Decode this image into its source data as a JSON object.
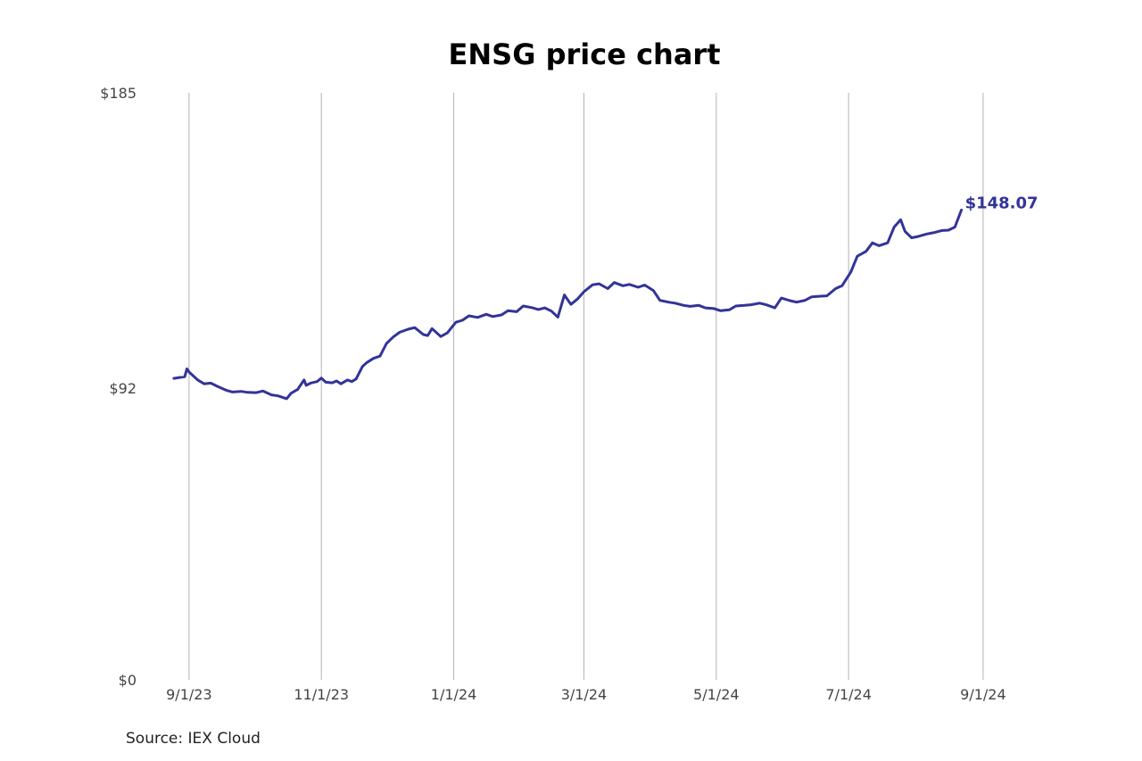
{
  "chart_data": {
    "type": "line",
    "title": "ENSG price chart",
    "xlabel": "",
    "ylabel": "",
    "source": "Source: IEX Cloud",
    "last_value_label": "$148.07",
    "line_color": "#333399",
    "grid": "vertical",
    "xlim": [
      "2023-08-23",
      "2024-09-29"
    ],
    "ylim": [
      0,
      185
    ],
    "y_ticks": [
      {
        "value": 0,
        "label": "$0"
      },
      {
        "value": 92,
        "label": "$92"
      },
      {
        "value": 185,
        "label": "$185"
      }
    ],
    "x_ticks": [
      {
        "date": "2023-09-01",
        "label": "9/1/23"
      },
      {
        "date": "2023-11-01",
        "label": "11/1/23"
      },
      {
        "date": "2024-01-01",
        "label": "1/1/24"
      },
      {
        "date": "2024-03-01",
        "label": "3/1/24"
      },
      {
        "date": "2024-05-01",
        "label": "5/1/24"
      },
      {
        "date": "2024-07-01",
        "label": "7/1/24"
      },
      {
        "date": "2024-09-01",
        "label": "9/1/24"
      }
    ],
    "series": [
      {
        "points": [
          [
            "2023-08-25",
            95.0
          ],
          [
            "2023-08-28",
            95.3
          ],
          [
            "2023-08-30",
            95.5
          ],
          [
            "2023-08-31",
            98.0
          ],
          [
            "2023-09-01",
            97.0
          ],
          [
            "2023-09-05",
            94.5
          ],
          [
            "2023-09-08",
            93.3
          ],
          [
            "2023-09-11",
            93.5
          ],
          [
            "2023-09-14",
            92.5
          ],
          [
            "2023-09-18",
            91.3
          ],
          [
            "2023-09-21",
            90.7
          ],
          [
            "2023-09-25",
            90.9
          ],
          [
            "2023-09-28",
            90.6
          ],
          [
            "2023-10-02",
            90.5
          ],
          [
            "2023-10-05",
            91.0
          ],
          [
            "2023-10-09",
            89.8
          ],
          [
            "2023-10-12",
            89.5
          ],
          [
            "2023-10-16",
            88.6
          ],
          [
            "2023-10-18",
            90.3
          ],
          [
            "2023-10-21",
            91.5
          ],
          [
            "2023-10-24",
            94.5
          ],
          [
            "2023-10-25",
            92.8
          ],
          [
            "2023-10-27",
            93.5
          ],
          [
            "2023-10-30",
            94.0
          ],
          [
            "2023-11-01",
            95.1
          ],
          [
            "2023-11-03",
            93.8
          ],
          [
            "2023-11-06",
            93.6
          ],
          [
            "2023-11-08",
            94.2
          ],
          [
            "2023-11-10",
            93.3
          ],
          [
            "2023-11-13",
            94.5
          ],
          [
            "2023-11-15",
            94.0
          ],
          [
            "2023-11-17",
            94.8
          ],
          [
            "2023-11-20",
            98.8
          ],
          [
            "2023-11-22",
            100.0
          ],
          [
            "2023-11-25",
            101.3
          ],
          [
            "2023-11-28",
            102.0
          ],
          [
            "2023-12-01",
            106.0
          ],
          [
            "2023-12-04",
            108.0
          ],
          [
            "2023-12-07",
            109.5
          ],
          [
            "2023-12-11",
            110.5
          ],
          [
            "2023-12-14",
            111.0
          ],
          [
            "2023-12-18",
            108.8
          ],
          [
            "2023-12-20",
            108.5
          ],
          [
            "2023-12-22",
            110.7
          ],
          [
            "2023-12-26",
            108.2
          ],
          [
            "2023-12-29",
            109.3
          ],
          [
            "2024-01-02",
            112.7
          ],
          [
            "2024-01-05",
            113.3
          ],
          [
            "2024-01-08",
            114.7
          ],
          [
            "2024-01-12",
            114.2
          ],
          [
            "2024-01-16",
            115.2
          ],
          [
            "2024-01-19",
            114.5
          ],
          [
            "2024-01-23",
            115.0
          ],
          [
            "2024-01-26",
            116.3
          ],
          [
            "2024-01-30",
            116.0
          ],
          [
            "2024-02-02",
            117.8
          ],
          [
            "2024-02-06",
            117.3
          ],
          [
            "2024-02-09",
            116.7
          ],
          [
            "2024-02-12",
            117.2
          ],
          [
            "2024-02-15",
            116.2
          ],
          [
            "2024-02-18",
            114.3
          ],
          [
            "2024-02-21",
            121.3
          ],
          [
            "2024-02-24",
            118.3
          ],
          [
            "2024-02-27",
            120.0
          ],
          [
            "2024-03-01",
            122.3
          ],
          [
            "2024-03-05",
            124.5
          ],
          [
            "2024-03-08",
            124.8
          ],
          [
            "2024-03-12",
            123.3
          ],
          [
            "2024-03-15",
            125.2
          ],
          [
            "2024-03-19",
            124.2
          ],
          [
            "2024-03-22",
            124.6
          ],
          [
            "2024-03-26",
            123.7
          ],
          [
            "2024-03-29",
            124.4
          ],
          [
            "2024-04-02",
            122.7
          ],
          [
            "2024-04-05",
            119.6
          ],
          [
            "2024-04-09",
            119.0
          ],
          [
            "2024-04-12",
            118.7
          ],
          [
            "2024-04-16",
            118.0
          ],
          [
            "2024-04-19",
            117.7
          ],
          [
            "2024-04-23",
            118.0
          ],
          [
            "2024-04-26",
            117.2
          ],
          [
            "2024-04-30",
            117.0
          ],
          [
            "2024-05-03",
            116.3
          ],
          [
            "2024-05-07",
            116.6
          ],
          [
            "2024-05-10",
            117.8
          ],
          [
            "2024-05-14",
            118.0
          ],
          [
            "2024-05-17",
            118.2
          ],
          [
            "2024-05-21",
            118.7
          ],
          [
            "2024-05-24",
            118.2
          ],
          [
            "2024-05-28",
            117.2
          ],
          [
            "2024-05-31",
            120.3
          ],
          [
            "2024-06-04",
            119.5
          ],
          [
            "2024-06-07",
            119.0
          ],
          [
            "2024-06-11",
            119.6
          ],
          [
            "2024-06-14",
            120.7
          ],
          [
            "2024-06-18",
            120.9
          ],
          [
            "2024-06-21",
            121.0
          ],
          [
            "2024-06-25",
            123.3
          ],
          [
            "2024-06-28",
            124.2
          ],
          [
            "2024-07-02",
            128.5
          ],
          [
            "2024-07-05",
            133.5
          ],
          [
            "2024-07-09",
            135.0
          ],
          [
            "2024-07-12",
            137.7
          ],
          [
            "2024-07-15",
            136.8
          ],
          [
            "2024-07-19",
            137.7
          ],
          [
            "2024-07-22",
            142.7
          ],
          [
            "2024-07-25",
            145.0
          ],
          [
            "2024-07-27",
            141.3
          ],
          [
            "2024-07-30",
            139.3
          ],
          [
            "2024-08-02",
            139.7
          ],
          [
            "2024-08-06",
            140.5
          ],
          [
            "2024-08-09",
            140.9
          ],
          [
            "2024-08-13",
            141.6
          ],
          [
            "2024-08-16",
            141.7
          ],
          [
            "2024-08-19",
            142.7
          ],
          [
            "2024-08-22",
            148.07
          ]
        ]
      }
    ]
  }
}
